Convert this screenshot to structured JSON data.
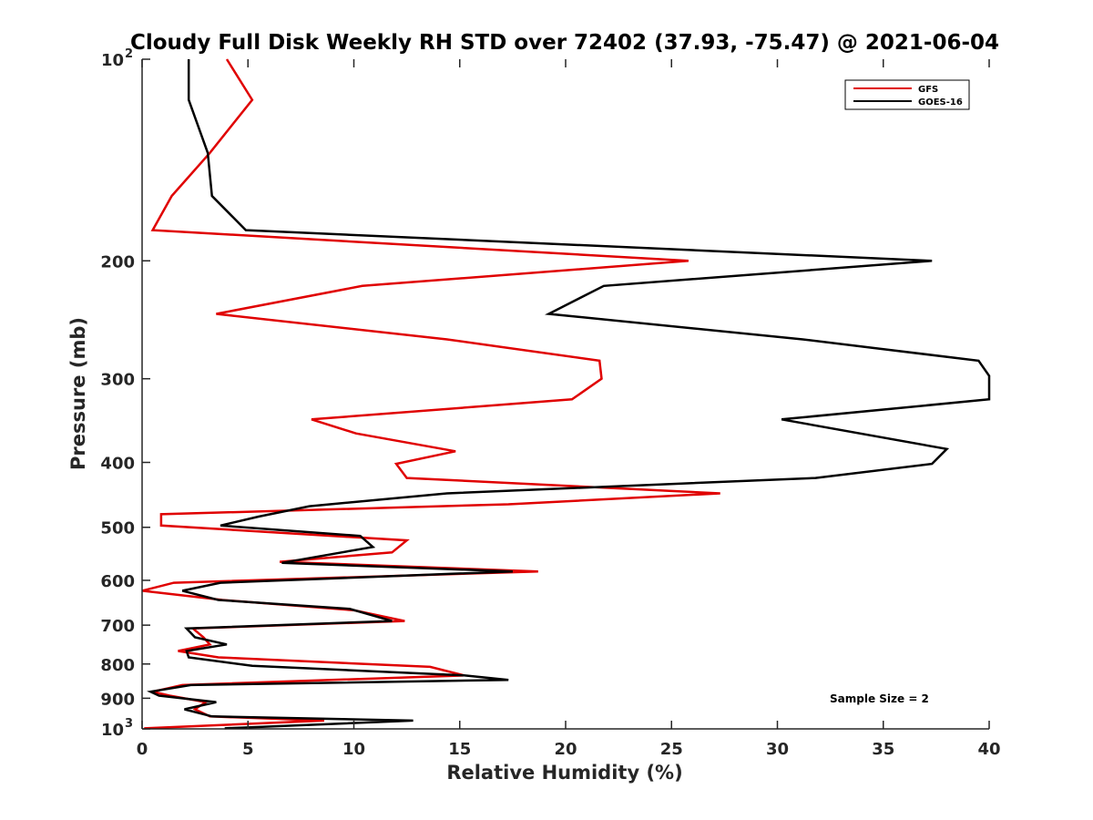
{
  "chart_data": {
    "type": "line",
    "title": "Cloudy Full Disk Weekly RH STD over 72402 (37.93, -75.47) @ 2021-06-04",
    "xlabel": "Relative Humidity (%)",
    "ylabel": "Pressure (mb)",
    "xlim": [
      0,
      40
    ],
    "ylim": [
      100,
      1000
    ],
    "yscale": "log",
    "y_reversed": true,
    "grid": false,
    "legend_position": "top-right",
    "x_ticks": [
      "0",
      "5",
      "10",
      "15",
      "20",
      "25",
      "30",
      "35",
      "40"
    ],
    "y_ticks": [
      {
        "value": 100,
        "base": "10",
        "exp": "2"
      },
      {
        "value": 200,
        "label": "200"
      },
      {
        "value": 300,
        "label": "300"
      },
      {
        "value": 400,
        "label": "400"
      },
      {
        "value": 500,
        "label": "500"
      },
      {
        "value": 600,
        "label": "600"
      },
      {
        "value": 700,
        "label": "700"
      },
      {
        "value": 800,
        "label": "800"
      },
      {
        "value": 900,
        "label": "900"
      },
      {
        "value": 1000,
        "base": "10",
        "exp": "3"
      }
    ],
    "annotation": "Sample Size = 2",
    "series": [
      {
        "name": "GFS",
        "color": "#e00000",
        "points": [
          [
            4.0,
            100
          ],
          [
            5.2,
            115
          ],
          [
            3.2,
            138
          ],
          [
            1.4,
            160
          ],
          [
            0.5,
            180
          ],
          [
            25.8,
            200
          ],
          [
            10.4,
            218
          ],
          [
            3.5,
            240
          ],
          [
            14.4,
            262
          ],
          [
            21.6,
            282
          ],
          [
            21.7,
            300
          ],
          [
            20.3,
            322
          ],
          [
            8.0,
            345
          ],
          [
            10.1,
            362
          ],
          [
            14.8,
            385
          ],
          [
            12.0,
            402
          ],
          [
            12.5,
            422
          ],
          [
            27.3,
            445
          ],
          [
            17.3,
            462
          ],
          [
            0.9,
            478
          ],
          [
            0.9,
            497
          ],
          [
            12.5,
            523
          ],
          [
            11.8,
            545
          ],
          [
            6.5,
            563
          ],
          [
            18.7,
            582
          ],
          [
            1.5,
            605
          ],
          [
            0.0,
            622
          ],
          [
            3.8,
            642
          ],
          [
            10.0,
            665
          ],
          [
            12.4,
            690
          ],
          [
            2.4,
            708
          ],
          [
            2.9,
            730
          ],
          [
            3.2,
            748
          ],
          [
            1.7,
            765
          ],
          [
            3.6,
            782
          ],
          [
            13.6,
            808
          ],
          [
            15.2,
            832
          ],
          [
            1.9,
            860
          ],
          [
            0.5,
            880
          ],
          [
            1.3,
            892
          ],
          [
            3.0,
            912
          ],
          [
            2.5,
            935
          ],
          [
            3.2,
            958
          ],
          [
            8.6,
            972
          ],
          [
            0.1,
            998
          ]
        ]
      },
      {
        "name": "GOES-16",
        "color": "#000000",
        "points": [
          [
            2.2,
            100
          ],
          [
            2.2,
            115
          ],
          [
            3.1,
            138
          ],
          [
            3.3,
            160
          ],
          [
            4.9,
            180
          ],
          [
            37.3,
            200
          ],
          [
            21.8,
            218
          ],
          [
            19.2,
            240
          ],
          [
            31.2,
            262
          ],
          [
            39.5,
            282
          ],
          [
            40.0,
            297
          ],
          [
            40.0,
            322
          ],
          [
            30.2,
            345
          ],
          [
            38.0,
            382
          ],
          [
            37.3,
            402
          ],
          [
            31.8,
            422
          ],
          [
            14.4,
            445
          ],
          [
            7.9,
            465
          ],
          [
            5.5,
            482
          ],
          [
            3.7,
            497
          ],
          [
            10.3,
            515
          ],
          [
            10.9,
            535
          ],
          [
            6.6,
            565
          ],
          [
            17.5,
            582
          ],
          [
            3.7,
            605
          ],
          [
            1.9,
            622
          ],
          [
            3.6,
            642
          ],
          [
            9.8,
            662
          ],
          [
            11.8,
            690
          ],
          [
            2.1,
            708
          ],
          [
            2.5,
            730
          ],
          [
            4.0,
            748
          ],
          [
            2.1,
            765
          ],
          [
            2.2,
            782
          ],
          [
            5.2,
            805
          ],
          [
            15.2,
            832
          ],
          [
            17.3,
            845
          ],
          [
            2.3,
            860
          ],
          [
            0.4,
            880
          ],
          [
            0.8,
            892
          ],
          [
            3.5,
            912
          ],
          [
            2.0,
            935
          ],
          [
            3.3,
            958
          ],
          [
            12.8,
            972
          ],
          [
            3.9,
            998
          ]
        ]
      }
    ]
  }
}
